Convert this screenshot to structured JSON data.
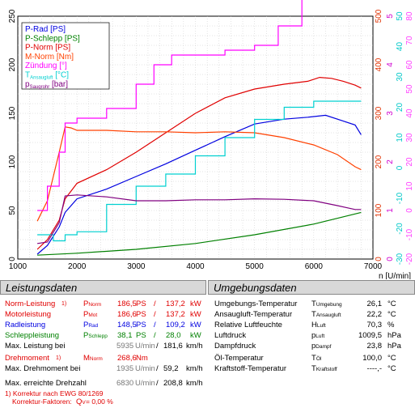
{
  "chart_data": {
    "type": "line",
    "x_unit": "n [U/min]",
    "x_ticks": [
      "1000",
      "2000",
      "3000",
      "4000",
      "5000",
      "6000",
      "7000"
    ],
    "xlim": [
      1000,
      7000
    ],
    "ylim_left": [
      0,
      250
    ],
    "y_ticks_left": [
      "0",
      "50",
      "100",
      "150",
      "200",
      "250"
    ],
    "right_axes": [
      {
        "color": "#e03000",
        "ylim": [
          0,
          500
        ],
        "ticks": [
          "0",
          "100",
          "200",
          "300",
          "400",
          "500"
        ]
      },
      {
        "color": "#d000d0",
        "ylim": [
          0,
          5
        ],
        "ticks": [
          "0",
          "1",
          "2",
          "3",
          "4",
          "5"
        ]
      },
      {
        "color": "#00c8c8",
        "ylim": [
          -30,
          50
        ],
        "ticks": [
          "-30",
          "-20",
          "-10",
          "0",
          "10",
          "20",
          "30",
          "40",
          "50"
        ]
      },
      {
        "color": "#ff40ff",
        "ylim": [
          -20,
          80
        ],
        "ticks": [
          "-20",
          "-10",
          "0",
          "10",
          "20",
          "30",
          "40",
          "50",
          "60",
          "70",
          "80"
        ]
      }
    ],
    "legend": [
      {
        "label": "P-Rad [PS]",
        "color": "#0000e0"
      },
      {
        "label": "P-Schlepp [PS]",
        "color": "#008000"
      },
      {
        "label": "P-Norm [PS]",
        "color": "#e00000"
      },
      {
        "label": "M-Norm [Nm]",
        "color": "#ff4000"
      },
      {
        "label": "Zündung [°]",
        "color": "#ff00ff"
      },
      {
        "label": "T",
        "sub": "Ansaugluft",
        "unit": " [°C]",
        "color": "#00d0d0"
      },
      {
        "label": "p",
        "sub": "Saugrohr",
        "unit": " [bar]",
        "color": "#800080"
      }
    ],
    "legend_position": "top-left",
    "grid": true,
    "series": [
      {
        "name": "P-Rad [PS]",
        "color": "#0000e0",
        "x": [
          1330,
          1500,
          1700,
          1800,
          2000,
          2500,
          3000,
          3500,
          4000,
          4500,
          5000,
          5500,
          5900,
          6200,
          6500,
          6700,
          6800
        ],
        "y": [
          5,
          14,
          33,
          48,
          62,
          72,
          85,
          98,
          112,
          126,
          139,
          144,
          146,
          148,
          142,
          138,
          128
        ]
      },
      {
        "name": "P-Schlepp [PS]",
        "color": "#008000",
        "x": [
          1330,
          2000,
          3000,
          4000,
          5000,
          6000,
          6800
        ],
        "y": [
          4,
          6,
          10,
          16,
          25,
          36,
          48
        ]
      },
      {
        "name": "P-Norm [PS]",
        "color": "#e00000",
        "x": [
          1330,
          1500,
          1700,
          1800,
          2000,
          2500,
          3000,
          3500,
          4000,
          4500,
          5000,
          5500,
          5900,
          6100,
          6300,
          6500,
          6700,
          6800
        ],
        "y": [
          10,
          20,
          40,
          62,
          78,
          92,
          110,
          130,
          150,
          166,
          175,
          180,
          183,
          187,
          186,
          183,
          179,
          176
        ]
      },
      {
        "name": "M-Norm [Nm]",
        "color": "#ff4000",
        "x": [
          1330,
          1500,
          1700,
          1800,
          1900,
          2000,
          2500,
          3000,
          3500,
          4000,
          4500,
          5000,
          5500,
          6000,
          6400,
          6700,
          6800
        ],
        "y": [
          78,
          120,
          220,
          272,
          270,
          265,
          265,
          262,
          262,
          260,
          262,
          260,
          250,
          235,
          215,
          190,
          184
        ]
      },
      {
        "name": "Zündung [°]",
        "color": "#ff00ff",
        "x": [
          1330,
          1500,
          1700,
          1800,
          2000,
          2500,
          3000,
          3300,
          3600,
          4000,
          4500,
          5000,
          5400,
          5800,
          6200,
          6500,
          6700,
          6800
        ],
        "y": [
          1.0,
          1.5,
          2.2,
          2.8,
          2.9,
          3.1,
          3.6,
          4.0,
          4.2,
          4.2,
          4.3,
          4.4,
          4.8,
          5.4,
          5.8,
          6.4,
          6.5,
          5.8
        ]
      },
      {
        "name": "T Ansaugluft [°C]",
        "color": "#00d0d0",
        "x": [
          1330,
          1600,
          1800,
          2000,
          2500,
          3000,
          3500,
          4000,
          4500,
          5000,
          5500,
          6000,
          6500,
          6800
        ],
        "y": [
          -22,
          -24,
          -22,
          -21,
          -12,
          -6,
          -2,
          4,
          10,
          16,
          20,
          22,
          22,
          22
        ]
      },
      {
        "name": "p Saugrohr [bar]",
        "color": "#800080",
        "x": [
          1330,
          1500,
          1700,
          1800,
          2000,
          2500,
          3000,
          3500,
          4000,
          4500,
          5000,
          5500,
          6000,
          6400,
          6700,
          6800
        ],
        "y": [
          0.32,
          0.35,
          0.75,
          1.3,
          1.32,
          1.28,
          1.2,
          1.2,
          1.22,
          1.22,
          1.24,
          1.23,
          1.2,
          1.1,
          1.02,
          1.02
        ]
      }
    ]
  },
  "left_panel": {
    "title": "Leistungsdaten",
    "rows": [
      {
        "label": "Norm-Leistung",
        "footnote": "1)",
        "sym": "P",
        "sub": "Norm",
        "v1": "186,5",
        "u1": "PS",
        "sep": "/",
        "v2": "137,2",
        "u2": "kW",
        "cls": "red"
      },
      {
        "label": "Motorleistung",
        "footnote": "",
        "sym": "P",
        "sub": "Mot",
        "v1": "186,6",
        "u1": "PS",
        "sep": "/",
        "v2": "137,2",
        "u2": "kW",
        "cls": "red"
      },
      {
        "label": "Radleistung",
        "footnote": "",
        "sym": "P",
        "sub": "Rad",
        "v1": "148,5",
        "u1": "PS",
        "sep": "/",
        "v2": "109,2",
        "u2": "kW",
        "cls": "blue"
      },
      {
        "label": "Schleppleistung",
        "footnote": "",
        "sym": "P",
        "sub": "Schlepp",
        "v1": "38,1",
        "u1": "PS",
        "sep": "/",
        "v2": "28,0",
        "u2": "kW",
        "cls": "green"
      }
    ],
    "max_power": {
      "label": "Max. Leistung bei",
      "rpm": "5935",
      "rpm_unit": "U/min",
      "sep": "/",
      "speed": "181,6",
      "speed_unit": "km/h"
    },
    "torque": {
      "label": "Drehmoment",
      "footnote": "1)",
      "sym": "M",
      "sub": "Norm",
      "value": "268,6",
      "unit": "Nm"
    },
    "max_torque": {
      "label": "Max. Drehmoment bei",
      "rpm": "1935",
      "rpm_unit": "U/min",
      "sep": "/",
      "speed": "59,2",
      "speed_unit": "km/h"
    },
    "max_rpm": {
      "label": "Max. erreichte Drehzahl",
      "rpm": "6830",
      "rpm_unit": "U/min",
      "sep": "/",
      "speed": "208,8",
      "speed_unit": "km/h"
    },
    "footnote1": "1) Korrektur nach EWG 80/1269",
    "footnote2_label": "Korrektur-Faktoren:",
    "footnote2_sym": "Q",
    "footnote2_sub": "V",
    "footnote2_value": "=   0,00 %"
  },
  "right_panel": {
    "title": "Umgebungsdaten",
    "rows": [
      {
        "label": "Umgebungs-Temperatur",
        "sym": "T",
        "sub": "Umgebung",
        "value": "26,1",
        "unit": "°C"
      },
      {
        "label": "Ansaugluft-Temperatur",
        "sym": "T",
        "sub": "Ansaugluft",
        "value": "22,2",
        "unit": "°C"
      },
      {
        "label": "Relative Luftfeuchte",
        "sym": "H",
        "sub": "Luft",
        "value": "70,3",
        "unit": "%"
      },
      {
        "label": "Luftdruck",
        "sym": "p",
        "sub": "Luft",
        "value": "1009,5",
        "unit": "hPa"
      },
      {
        "label": "Dampfdruck",
        "sym": "p",
        "sub": "Dampf",
        "value": "23,8",
        "unit": "hPa"
      },
      {
        "label": "Öl-Temperatur",
        "sym": "T",
        "sub": "Öl",
        "value": "100,0",
        "unit": "°C"
      },
      {
        "label": "Kraftstoff-Temperatur",
        "sym": "T",
        "sub": "Kraftstoff",
        "value": "----,-",
        "unit": "°C"
      }
    ]
  }
}
